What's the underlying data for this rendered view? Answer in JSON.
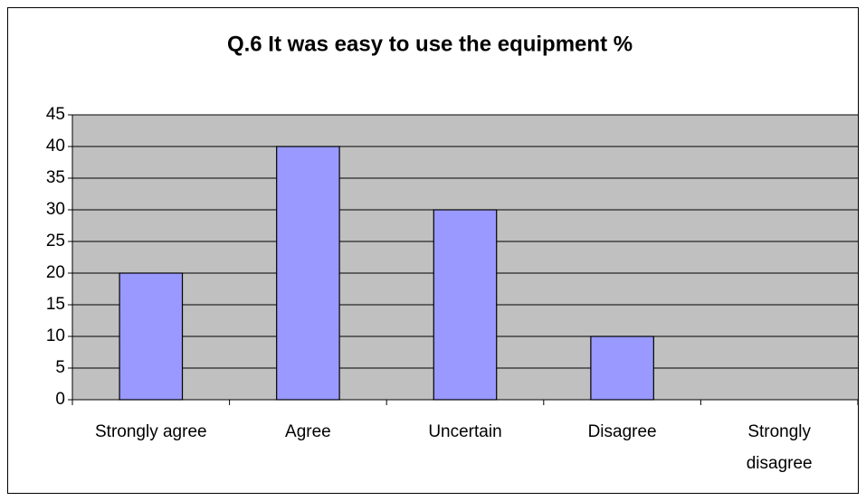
{
  "chart_data": {
    "type": "bar",
    "title": "Q.6 It was easy to use the equipment %",
    "categories": [
      "Strongly agree",
      "Agree",
      "Uncertain",
      "Disagree",
      "Strongly disagree"
    ],
    "values": [
      20,
      40,
      30,
      10,
      0
    ],
    "color": "#9999ff",
    "ylim": [
      0,
      45
    ],
    "yticks": [
      0,
      5,
      10,
      15,
      20,
      25,
      30,
      35,
      40,
      45
    ],
    "grid": true
  }
}
